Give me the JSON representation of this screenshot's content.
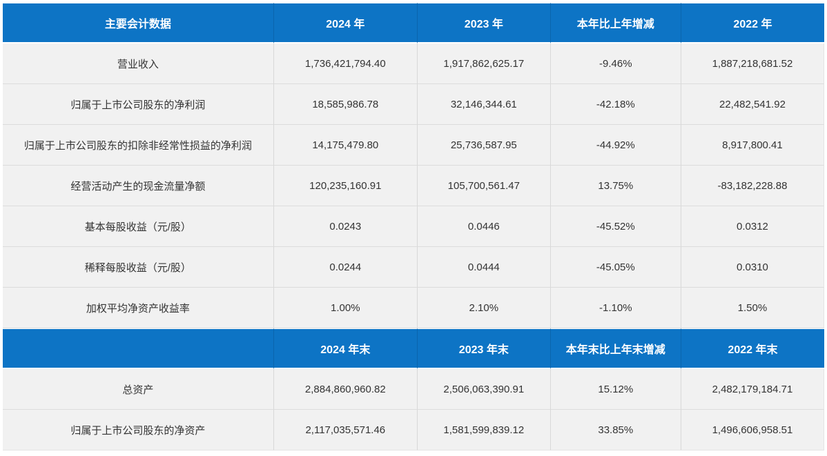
{
  "window": {
    "description": "Key accounting data summary table from an annual report"
  },
  "styles": {
    "header_bg": "#0d74c5",
    "header_divider": "#0a65ad",
    "header_text": "#ffffff",
    "cell_bg": "#f1f1f1",
    "cell_text": "#333333",
    "grid_line": "#dcdcdc",
    "page_bg": "#ffffff"
  },
  "chart_data": {
    "type": "table",
    "title": "主要会计数据",
    "header_row_1": [
      "主要会计数据",
      "2024 年",
      "2023 年",
      "本年比上年增减",
      "2022 年"
    ],
    "rows_annual": [
      [
        "营业收入",
        "1,736,421,794.40",
        "1,917,862,625.17",
        "-9.46%",
        "1,887,218,681.52"
      ],
      [
        "归属于上市公司股东的净利润",
        "18,585,986.78",
        "32,146,344.61",
        "-42.18%",
        "22,482,541.92"
      ],
      [
        "归属于上市公司股东的扣除非经常性损益的净利润",
        "14,175,479.80",
        "25,736,587.95",
        "-44.92%",
        "8,917,800.41"
      ],
      [
        "经营活动产生的现金流量净额",
        "120,235,160.91",
        "105,700,561.47",
        "13.75%",
        "-83,182,228.88"
      ],
      [
        "基本每股收益（元/股）",
        "0.0243",
        "0.0446",
        "-45.52%",
        "0.0312"
      ],
      [
        "稀释每股收益（元/股）",
        "0.0244",
        "0.0444",
        "-45.05%",
        "0.0310"
      ],
      [
        "加权平均净资产收益率",
        "1.00%",
        "2.10%",
        "-1.10%",
        "1.50%"
      ]
    ],
    "header_row_2": [
      "",
      "2024 年末",
      "2023 年末",
      "本年末比上年末增减",
      "2022 年末"
    ],
    "rows_period_end": [
      [
        "总资产",
        "2,884,860,960.82",
        "2,506,063,390.91",
        "15.12%",
        "2,482,179,184.71"
      ],
      [
        "归属于上市公司股东的净资产",
        "2,117,035,571.46",
        "1,581,599,839.12",
        "33.85%",
        "1,496,606,958.51"
      ]
    ]
  }
}
